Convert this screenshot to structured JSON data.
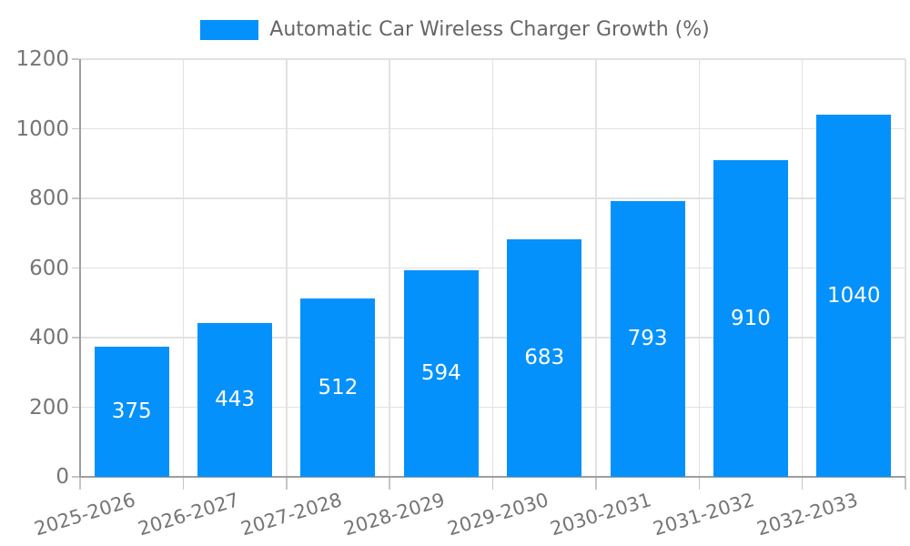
{
  "legend": {
    "label": "Automatic Car Wireless Charger Growth (%)"
  },
  "colors": {
    "bar": "#0591fb",
    "bar_value_label": "#ffffff",
    "legend_text": "#666666",
    "axis_label": "#757575",
    "gridline": "#e2e2e2",
    "axis_line": "#9e9e9e",
    "tick": "#c6c6c6",
    "background": "#ffffff"
  },
  "chart_data": {
    "type": "bar",
    "title": "Automatic Car Wireless Charger Growth (%)",
    "categories": [
      "2025-2026",
      "2026-2027",
      "2027-2028",
      "2028-2029",
      "2029-2030",
      "2030-2031",
      "2031-2032",
      "2032-2033"
    ],
    "series": [
      {
        "name": "Automatic Car Wireless Charger Growth (%)",
        "values": [
          375,
          443,
          512,
          594,
          683,
          793,
          910,
          1040
        ]
      }
    ],
    "xlabel": "",
    "ylabel": "",
    "ylim": [
      0,
      1200
    ],
    "yticks": [
      0,
      200,
      400,
      600,
      800,
      1000,
      1200
    ],
    "grid": true,
    "legend_position": "top-center",
    "value_labels": "inside-middle",
    "x_tick_label_rotation_deg": -17
  }
}
